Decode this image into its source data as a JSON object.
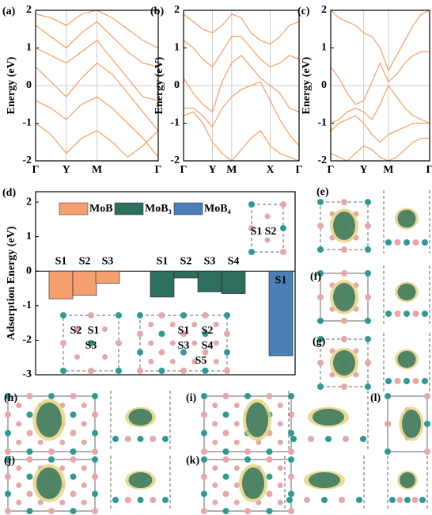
{
  "chart_data": [
    {
      "type": "line",
      "label": "(a)",
      "ylabel": "Energy (eV)",
      "x": [
        0,
        1,
        2,
        3,
        4,
        5,
        6,
        7,
        8
      ],
      "xlim": [
        0,
        8
      ],
      "xticks": [
        {
          "value": 0,
          "label": "Γ"
        },
        {
          "value": 2,
          "label": "Y"
        },
        {
          "value": 4,
          "label": "M"
        },
        {
          "value": 8,
          "label": "Γ"
        }
      ],
      "ylim": [
        -2,
        2
      ],
      "yticks": [
        -2,
        -1,
        0,
        1,
        2
      ],
      "grid": true,
      "zero_line": true,
      "series": [
        {
          "color": "#f5a56e",
          "values": [
            -1.0,
            -1.3,
            -1.8,
            -1.4,
            -1.2,
            -1.5,
            -1.9,
            -1.6,
            -1.2
          ]
        },
        {
          "color": "#f5a56e",
          "values": [
            -0.4,
            -0.6,
            -0.9,
            -0.5,
            -0.3,
            -0.6,
            -1.0,
            -1.4,
            -1.9
          ]
        },
        {
          "color": "#f5a56e",
          "values": [
            0.5,
            0.1,
            -0.3,
            0.2,
            0.6,
            0.3,
            -0.2,
            -0.7,
            -1.2
          ]
        },
        {
          "color": "#f5a56e",
          "values": [
            1.0,
            0.8,
            0.6,
            0.9,
            1.2,
            0.7,
            0.2,
            -0.3,
            -0.4
          ]
        },
        {
          "color": "#f5a56e",
          "values": [
            1.6,
            1.3,
            1.0,
            1.4,
            1.7,
            1.3,
            0.9,
            0.6,
            0.5
          ]
        },
        {
          "color": "#f5a56e",
          "values": [
            1.9,
            1.8,
            1.6,
            1.9,
            2.0,
            1.8,
            1.5,
            1.2,
            1.0
          ]
        }
      ]
    },
    {
      "type": "line",
      "label": "(b)",
      "ylabel": "Energy (eV)",
      "x": [
        0,
        1,
        2,
        3,
        4,
        5,
        6,
        7,
        8,
        9,
        10,
        11,
        12
      ],
      "xlim": [
        0,
        12
      ],
      "xticks": [
        {
          "value": 0,
          "label": "Γ"
        },
        {
          "value": 3,
          "label": "Y"
        },
        {
          "value": 5,
          "label": "M"
        },
        {
          "value": 9,
          "label": "X"
        },
        {
          "value": 12,
          "label": "Γ"
        }
      ],
      "ylim": [
        -2,
        2
      ],
      "yticks": [
        -2,
        -1,
        0,
        1,
        2
      ],
      "grid": true,
      "zero_line": true,
      "series": [
        {
          "color": "#f5a56e",
          "values": [
            -0.8,
            -0.7,
            -1.0,
            -1.5,
            -1.8,
            -2.0,
            -1.7,
            -1.4,
            -1.2,
            -1.6,
            -1.8,
            -1.9,
            -2.0
          ]
        },
        {
          "color": "#f5a56e",
          "values": [
            -0.6,
            -0.6,
            -0.8,
            -1.1,
            -0.6,
            -0.3,
            -0.1,
            0.0,
            0.1,
            -0.4,
            -0.9,
            -1.3,
            -1.6
          ]
        },
        {
          "color": "#f5a56e",
          "values": [
            0.2,
            -0.2,
            -0.5,
            -0.7,
            0.1,
            0.6,
            0.8,
            0.5,
            0.2,
            0.0,
            -0.2,
            -0.6,
            -0.7
          ]
        },
        {
          "color": "#f5a56e",
          "values": [
            1.2,
            1.0,
            0.7,
            0.5,
            0.9,
            1.3,
            1.3,
            1.0,
            0.7,
            0.5,
            0.6,
            0.8,
            0.7
          ]
        },
        {
          "color": "#f5a56e",
          "values": [
            1.9,
            1.7,
            1.5,
            1.4,
            1.6,
            1.9,
            1.8,
            1.4,
            1.2,
            1.1,
            1.3,
            1.6,
            1.7
          ]
        }
      ]
    },
    {
      "type": "line",
      "label": "(c)",
      "ylabel": "Energy (eV)",
      "x": [
        0,
        1,
        2,
        3,
        4,
        5,
        6,
        7,
        8,
        9,
        10,
        11,
        12
      ],
      "xlim": [
        0,
        12
      ],
      "xticks": [
        {
          "value": 0,
          "label": "Γ"
        },
        {
          "value": 4,
          "label": "Y"
        },
        {
          "value": 7,
          "label": "M"
        },
        {
          "value": 12,
          "label": "Γ"
        }
      ],
      "ylim": [
        -2,
        2
      ],
      "yticks": [
        -2,
        -1,
        0,
        1,
        2
      ],
      "grid": true,
      "zero_line": true,
      "series": [
        {
          "color": "#f5a56e",
          "values": [
            -1.8,
            -1.9,
            -2.0,
            -1.8,
            -1.6,
            -1.7,
            -1.9,
            -2.0,
            -1.9,
            -1.7,
            -1.5,
            -1.4,
            -1.4
          ]
        },
        {
          "color": "#f5a56e",
          "values": [
            -1.2,
            -1.0,
            -0.9,
            -0.8,
            -1.0,
            -1.3,
            -1.5,
            -1.3,
            -1.2,
            -1.1,
            -1.0,
            -1.0,
            -1.0
          ]
        },
        {
          "color": "#f5a56e",
          "values": [
            -1.0,
            -0.9,
            -0.7,
            -0.6,
            -0.7,
            -0.9,
            -0.5,
            0.0,
            -0.3,
            -0.6,
            -0.8,
            -0.9,
            -1.0
          ]
        },
        {
          "color": "#f5a56e",
          "values": [
            0.5,
            0.2,
            -0.2,
            -0.5,
            -0.4,
            0.1,
            0.6,
            0.1,
            0.3,
            0.6,
            0.8,
            0.9,
            0.9
          ]
        },
        {
          "color": "#f5a56e",
          "values": [
            2.0,
            1.8,
            1.7,
            1.6,
            1.4,
            1.3,
            1.0,
            0.4,
            0.8,
            1.2,
            1.6,
            1.9,
            2.0
          ]
        }
      ]
    },
    {
      "type": "bar",
      "label": "(d)",
      "ylabel": "Adsorption Energy (eV)",
      "categories": [
        "S1",
        "S2",
        "S3",
        "S1",
        "S2",
        "S3",
        "S4",
        "S1"
      ],
      "ylim": [
        -3,
        2.3
      ],
      "yticks": [
        -3,
        -2,
        -1,
        0,
        1,
        2
      ],
      "legend": "top",
      "series": [
        {
          "name": "MoB",
          "color": "#f4a070",
          "values": [
            -0.8,
            -0.7,
            -0.35,
            null,
            null,
            null,
            null,
            null
          ]
        },
        {
          "name": "MoB₃",
          "color": "#2e6e5e",
          "values": [
            null,
            null,
            null,
            -0.75,
            -0.2,
            -0.6,
            -0.65,
            null
          ]
        },
        {
          "name": "MoB₄",
          "color": "#4a7fb8",
          "values": [
            null,
            null,
            null,
            null,
            null,
            null,
            null,
            -2.45
          ]
        }
      ]
    }
  ],
  "figure": {
    "insets": {
      "mob": [
        "S2",
        "S1",
        "S3"
      ],
      "mob3": [
        "S1",
        "S2",
        "S3",
        "S4",
        "S5"
      ],
      "mob4": [
        "S1",
        "S2"
      ]
    },
    "panel_labels": [
      "(e)",
      "(f)",
      "(g)",
      "(h)",
      "(i)",
      "(l)",
      "(j)",
      "(k)"
    ]
  }
}
